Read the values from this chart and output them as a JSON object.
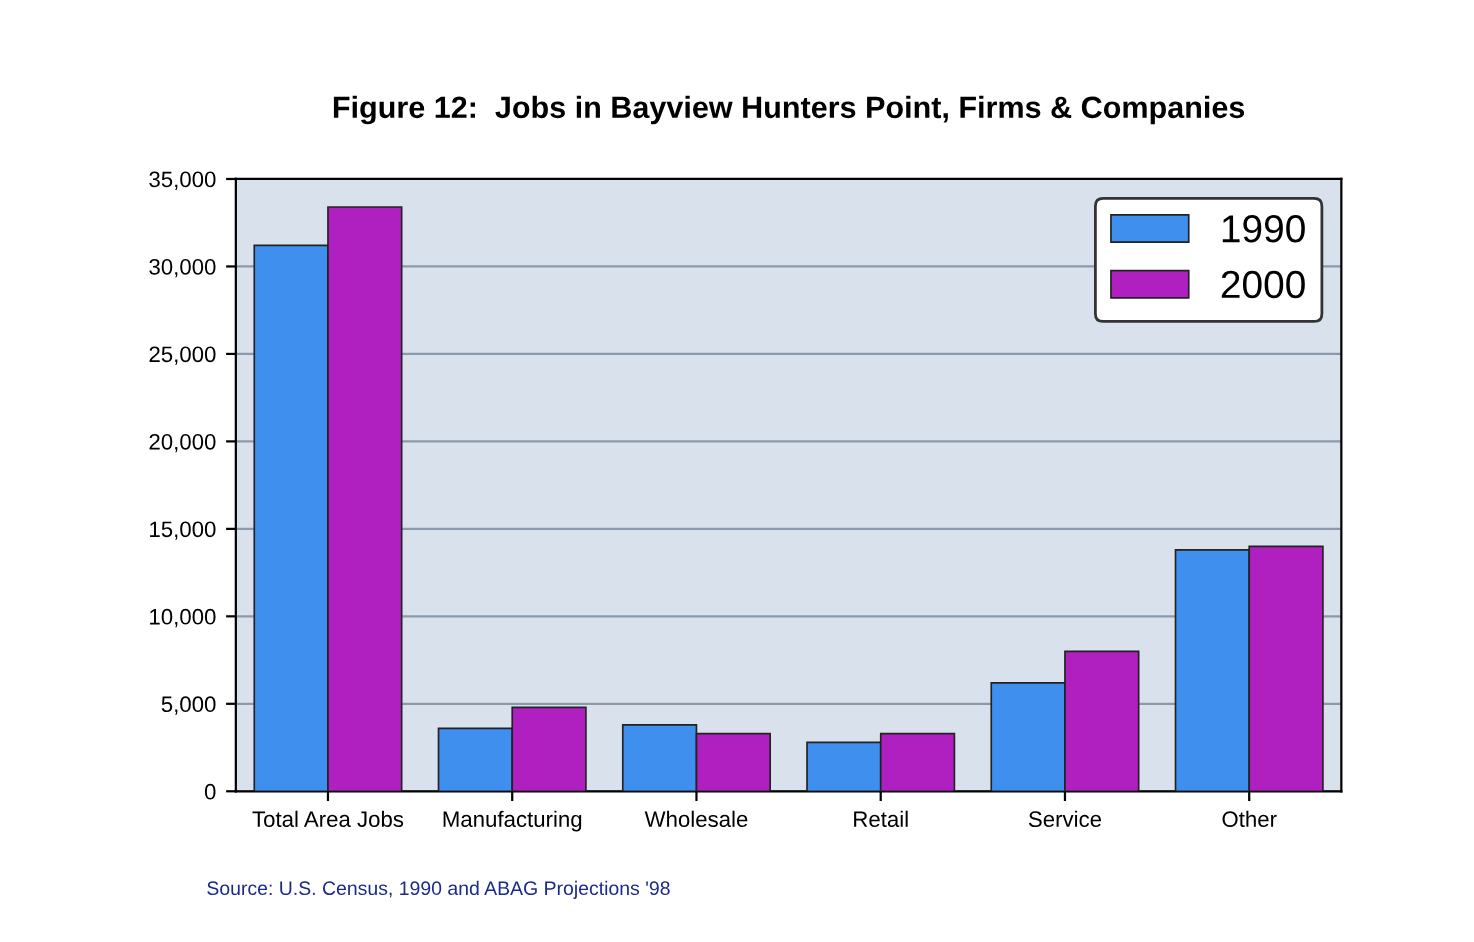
{
  "chart_data": {
    "type": "bar",
    "title": "Figure 12:  Jobs in Bayview Hunters Point, Firms & Companies",
    "categories": [
      "Total Area Jobs",
      "Manufacturing",
      "Wholesale",
      "Retail",
      "Service",
      "Other"
    ],
    "series": [
      {
        "name": "1990",
        "color": "#3f8fef",
        "values": [
          31200,
          3600,
          3800,
          2800,
          6200,
          13800
        ]
      },
      {
        "name": "2000",
        "color": "#b020c0",
        "values": [
          33400,
          4800,
          3300,
          3300,
          8000,
          14000
        ]
      }
    ],
    "ylim": [
      0,
      35000
    ],
    "yticks": [
      {
        "value": 0,
        "label": "0"
      },
      {
        "value": 5000,
        "label": "5,000"
      },
      {
        "value": 10000,
        "label": "10,000"
      },
      {
        "value": 15000,
        "label": "15,000"
      },
      {
        "value": 20000,
        "label": "20,000"
      },
      {
        "value": 25000,
        "label": "25,000"
      },
      {
        "value": 30000,
        "label": "30,000"
      },
      {
        "value": 35000,
        "label": "35,000"
      }
    ],
    "grid": "y",
    "legend": "top right",
    "annotations": [
      "Source: U.S. Census, 1990 and ABAG Projections '98"
    ]
  }
}
